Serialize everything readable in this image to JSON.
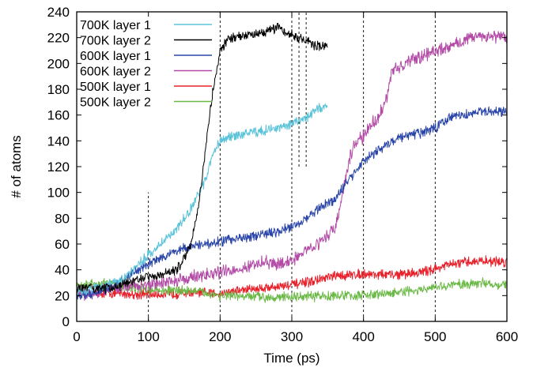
{
  "chart_data": {
    "type": "line",
    "xlabel": "Time (ps)",
    "ylabel": "# of atoms",
    "xlim": [
      0,
      600
    ],
    "ylim": [
      0,
      240
    ],
    "xticks": [
      0,
      100,
      200,
      300,
      400,
      500,
      600
    ],
    "yticks": [
      0,
      20,
      40,
      60,
      80,
      100,
      120,
      140,
      160,
      180,
      200,
      220,
      240
    ],
    "grid": false,
    "legend_position": "top-left",
    "markers": [
      {
        "x": 100,
        "y_from": 0,
        "y_to": 100
      },
      {
        "x": 200,
        "y_from": 0,
        "y_to": 240
      },
      {
        "x": 300,
        "y_from": 0,
        "y_to": 240
      },
      {
        "x": 310,
        "y_from": 120,
        "y_to": 240
      },
      {
        "x": 320,
        "y_from": 120,
        "y_to": 240
      },
      {
        "x": 400,
        "y_from": 0,
        "y_to": 240
      },
      {
        "x": 500,
        "y_from": 0,
        "y_to": 240
      }
    ],
    "series": [
      {
        "name": "700K layer 1",
        "color": "#5bc3d9",
        "noise": 3,
        "x": [
          0,
          20,
          40,
          60,
          80,
          100,
          120,
          140,
          160,
          180,
          190,
          200,
          220,
          240,
          260,
          280,
          300,
          320,
          340,
          350
        ],
        "y": [
          22,
          25,
          28,
          32,
          40,
          52,
          62,
          72,
          88,
          110,
          130,
          140,
          144,
          146,
          148,
          150,
          153,
          158,
          166,
          168
        ]
      },
      {
        "name": "700K layer 2",
        "color": "#000000",
        "noise": 3,
        "x": [
          0,
          20,
          40,
          60,
          80,
          100,
          120,
          140,
          160,
          170,
          180,
          190,
          200,
          210,
          220,
          240,
          260,
          280,
          300,
          320,
          330,
          340,
          350
        ],
        "y": [
          25,
          26,
          25,
          28,
          32,
          35,
          36,
          40,
          60,
          90,
          135,
          180,
          210,
          218,
          220,
          222,
          224,
          228,
          222,
          218,
          215,
          212,
          213
        ]
      },
      {
        "name": "600K layer 1",
        "color": "#2a45a8",
        "noise": 3,
        "x": [
          0,
          20,
          40,
          60,
          80,
          100,
          120,
          140,
          160,
          180,
          200,
          220,
          240,
          260,
          280,
          300,
          320,
          340,
          360,
          380,
          400,
          420,
          440,
          460,
          480,
          500,
          520,
          540,
          560,
          580,
          600
        ],
        "y": [
          20,
          22,
          25,
          30,
          38,
          45,
          50,
          55,
          58,
          60,
          62,
          64,
          66,
          67,
          70,
          74,
          80,
          88,
          95,
          110,
          125,
          132,
          140,
          144,
          146,
          150,
          158,
          160,
          162,
          163,
          163
        ]
      },
      {
        "name": "600K layer 2",
        "color": "#b24aa6",
        "noise": 4,
        "x": [
          0,
          20,
          40,
          60,
          80,
          100,
          120,
          140,
          160,
          180,
          200,
          220,
          240,
          260,
          280,
          300,
          320,
          340,
          360,
          370,
          380,
          390,
          400,
          410,
          420,
          430,
          440,
          460,
          480,
          500,
          520,
          540,
          560,
          580,
          600
        ],
        "y": [
          20,
          22,
          25,
          27,
          28,
          28,
          30,
          32,
          34,
          36,
          38,
          40,
          42,
          46,
          44,
          47,
          55,
          62,
          72,
          95,
          125,
          140,
          143,
          152,
          158,
          168,
          195,
          200,
          205,
          210,
          213,
          218,
          222,
          221,
          220
        ]
      },
      {
        "name": "500K layer 1",
        "color": "#e8202a",
        "noise": 3,
        "x": [
          0,
          40,
          80,
          120,
          160,
          200,
          240,
          280,
          320,
          360,
          400,
          440,
          480,
          520,
          560,
          600
        ],
        "y": [
          22,
          22,
          21,
          21,
          22,
          22,
          25,
          27,
          30,
          35,
          37,
          36,
          38,
          44,
          47,
          46
        ]
      },
      {
        "name": "500K layer 2",
        "color": "#6bb946",
        "noise": 3,
        "x": [
          0,
          40,
          80,
          120,
          160,
          200,
          240,
          280,
          320,
          360,
          400,
          440,
          480,
          520,
          560,
          600
        ],
        "y": [
          28,
          30,
          26,
          24,
          24,
          20,
          19,
          19,
          19,
          20,
          20,
          22,
          24,
          28,
          30,
          28
        ]
      }
    ]
  }
}
